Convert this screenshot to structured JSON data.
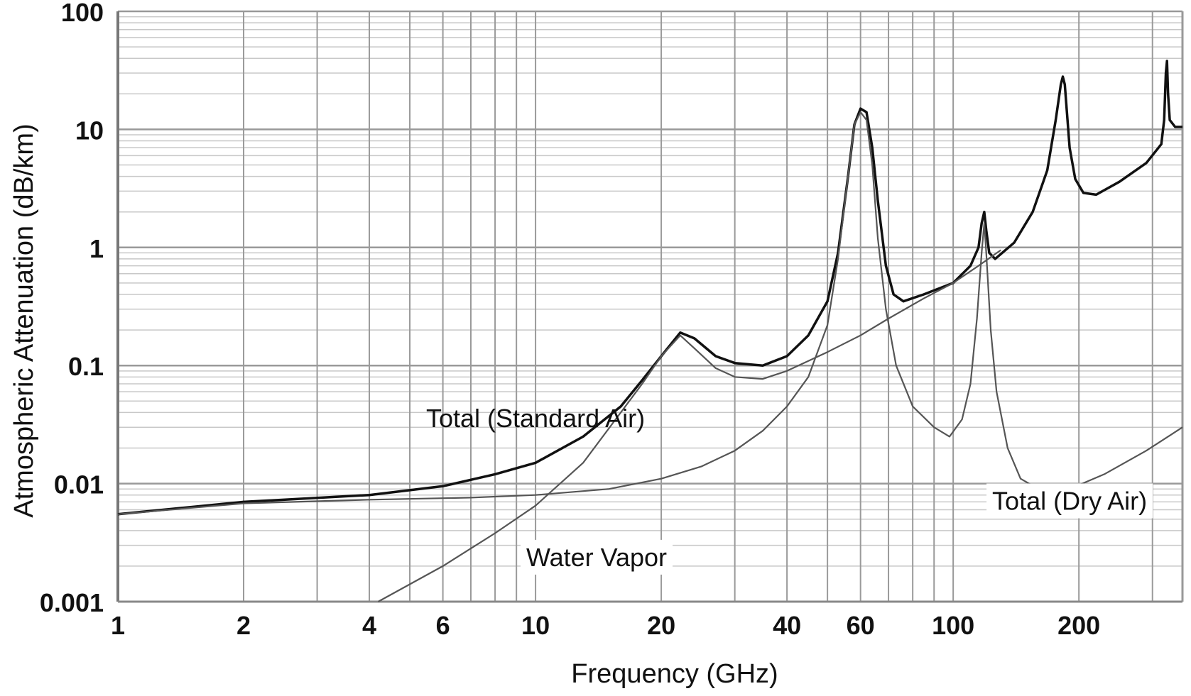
{
  "chart_data": {
    "type": "line",
    "title": "",
    "xlabel": "Frequency (GHz)",
    "ylabel": "Atmospheric  Attenuation (dB/km)",
    "xscale": "log",
    "yscale": "log",
    "xlim": [
      1,
      354
    ],
    "ylim": [
      0.001,
      100
    ],
    "grid": true,
    "x_ticks": [
      "1",
      "2",
      "4",
      "6",
      "10",
      "20",
      "40",
      "60",
      "100",
      "200"
    ],
    "y_ticks": [
      "100",
      "10",
      "1",
      "0.1",
      "0.01",
      "0.001"
    ],
    "series": [
      {
        "name": "Total (Standard Air)",
        "color": "#111111",
        "points": [
          [
            1,
            0.0055
          ],
          [
            2,
            0.007
          ],
          [
            4,
            0.008
          ],
          [
            6,
            0.0095
          ],
          [
            8,
            0.012
          ],
          [
            10,
            0.015
          ],
          [
            13,
            0.025
          ],
          [
            16,
            0.045
          ],
          [
            18,
            0.075
          ],
          [
            20,
            0.12
          ],
          [
            22.2,
            0.19
          ],
          [
            24,
            0.17
          ],
          [
            27,
            0.12
          ],
          [
            30,
            0.105
          ],
          [
            35,
            0.1
          ],
          [
            40,
            0.12
          ],
          [
            45,
            0.18
          ],
          [
            50,
            0.35
          ],
          [
            53,
            0.9
          ],
          [
            56,
            4
          ],
          [
            58,
            11
          ],
          [
            60,
            15
          ],
          [
            62,
            14
          ],
          [
            64,
            7
          ],
          [
            66,
            2.5
          ],
          [
            69,
            0.7
          ],
          [
            72,
            0.4
          ],
          [
            76,
            0.35
          ],
          [
            85,
            0.4
          ],
          [
            100,
            0.5
          ],
          [
            110,
            0.7
          ],
          [
            115,
            1
          ],
          [
            117,
            1.6
          ],
          [
            118.7,
            2
          ],
          [
            120,
            1.4
          ],
          [
            122,
            0.9
          ],
          [
            126,
            0.8
          ],
          [
            140,
            1.1
          ],
          [
            155,
            2
          ],
          [
            168,
            4.5
          ],
          [
            176,
            12
          ],
          [
            181,
            24
          ],
          [
            183,
            28
          ],
          [
            185,
            24
          ],
          [
            190,
            7
          ],
          [
            196,
            3.8
          ],
          [
            205,
            2.9
          ],
          [
            220,
            2.8
          ],
          [
            250,
            3.6
          ],
          [
            290,
            5.2
          ],
          [
            315,
            7.5
          ],
          [
            320,
            12
          ],
          [
            323,
            30
          ],
          [
            325,
            38
          ],
          [
            327,
            20
          ],
          [
            330,
            12
          ],
          [
            340,
            10.5
          ],
          [
            354,
            10.5
          ]
        ]
      },
      {
        "name": "Water Vapor",
        "color": "#555555",
        "points": [
          [
            4.2,
            0.001
          ],
          [
            6,
            0.002
          ],
          [
            8,
            0.0038
          ],
          [
            10,
            0.0065
          ],
          [
            13,
            0.015
          ],
          [
            16,
            0.04
          ],
          [
            18,
            0.07
          ],
          [
            20,
            0.12
          ],
          [
            22.2,
            0.18
          ],
          [
            24,
            0.14
          ],
          [
            27,
            0.095
          ],
          [
            30,
            0.08
          ],
          [
            35,
            0.077
          ],
          [
            40,
            0.09
          ],
          [
            50,
            0.13
          ],
          [
            60,
            0.18
          ],
          [
            70,
            0.25
          ],
          [
            85,
            0.37
          ],
          [
            100,
            0.5
          ],
          [
            115,
            0.7
          ],
          [
            130,
            0.95
          ]
        ]
      },
      {
        "name": "Total (Dry Air)",
        "color": "#555555",
        "points": [
          [
            1,
            0.0055
          ],
          [
            2,
            0.0068
          ],
          [
            4,
            0.0073
          ],
          [
            7,
            0.0076
          ],
          [
            10,
            0.008
          ],
          [
            15,
            0.009
          ],
          [
            20,
            0.011
          ],
          [
            25,
            0.014
          ],
          [
            30,
            0.019
          ],
          [
            35,
            0.028
          ],
          [
            40,
            0.045
          ],
          [
            45,
            0.08
          ],
          [
            50,
            0.22
          ],
          [
            53,
            0.8
          ],
          [
            56,
            4
          ],
          [
            58,
            11
          ],
          [
            60,
            14
          ],
          [
            62,
            12
          ],
          [
            64,
            5
          ],
          [
            66,
            1.2
          ],
          [
            69,
            0.3
          ],
          [
            73,
            0.1
          ],
          [
            80,
            0.045
          ],
          [
            90,
            0.03
          ],
          [
            98,
            0.025
          ],
          [
            105,
            0.035
          ],
          [
            110,
            0.07
          ],
          [
            114,
            0.25
          ],
          [
            117,
            0.9
          ],
          [
            118.7,
            1.6
          ],
          [
            120,
            0.9
          ],
          [
            123,
            0.2
          ],
          [
            127,
            0.06
          ],
          [
            135,
            0.02
          ],
          [
            145,
            0.011
          ],
          [
            160,
            0.009
          ],
          [
            190,
            0.009
          ],
          [
            230,
            0.012
          ],
          [
            290,
            0.019
          ],
          [
            354,
            0.03
          ]
        ]
      }
    ],
    "annotations": [
      {
        "text": "Total (Standard Air)",
        "x": 10,
        "y": 0.03
      },
      {
        "text": "Total (Dry Air)",
        "x": 190,
        "y": 0.006
      },
      {
        "text": "Water Vapor",
        "x": 14,
        "y": 0.002
      }
    ]
  }
}
